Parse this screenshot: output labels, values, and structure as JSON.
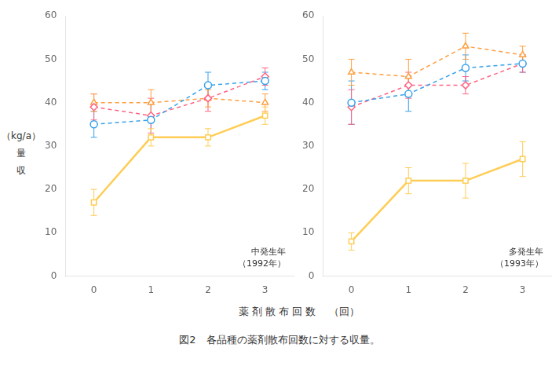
{
  "chart_data": [
    {
      "type": "line",
      "annotation": [
        "中発生年",
        "（1992年）"
      ],
      "x": [
        0,
        1,
        2,
        3
      ],
      "series": [
        {
          "marker": "circle",
          "line_style": "dashed",
          "values": [
            35,
            36,
            44,
            45
          ],
          "errors": [
            3,
            4,
            3,
            2
          ]
        },
        {
          "marker": "diamond",
          "line_style": "dashed",
          "values": [
            39,
            37,
            41,
            46
          ],
          "errors": [
            3,
            4,
            3,
            2
          ]
        },
        {
          "marker": "triangle",
          "line_style": "dashed",
          "values": [
            40,
            40,
            41,
            40
          ],
          "errors": [
            2,
            3,
            2,
            2
          ]
        },
        {
          "marker": "square",
          "line_style": "solid",
          "values": [
            17,
            32,
            32,
            37
          ],
          "errors": [
            3,
            2,
            2,
            2
          ]
        }
      ],
      "xlim": [
        -0.5,
        3.5
      ],
      "xticks": [
        0,
        1,
        2,
        3
      ],
      "ylim": [
        0,
        60
      ],
      "yticks": [
        0,
        10,
        20,
        30,
        40,
        50,
        60
      ],
      "grid": false
    },
    {
      "type": "line",
      "annotation": [
        "多発生年",
        "（1993年）"
      ],
      "x": [
        0,
        1,
        2,
        3
      ],
      "series": [
        {
          "marker": "circle",
          "line_style": "dashed",
          "values": [
            40,
            42,
            48,
            49
          ],
          "errors": [
            5,
            4,
            3,
            2
          ]
        },
        {
          "marker": "diamond",
          "line_style": "dashed",
          "values": [
            39,
            44,
            44,
            49
          ],
          "errors": [
            4,
            3,
            2,
            2
          ]
        },
        {
          "marker": "triangle",
          "line_style": "dashed",
          "values": [
            47,
            46,
            53,
            51
          ],
          "errors": [
            3,
            4,
            3,
            2
          ]
        },
        {
          "marker": "square",
          "line_style": "solid",
          "values": [
            8,
            22,
            22,
            27
          ],
          "errors": [
            2,
            3,
            4,
            4
          ]
        }
      ],
      "xlim": [
        -0.5,
        3.5
      ],
      "xticks": [
        0,
        1,
        2,
        3
      ],
      "ylim": [
        0,
        60
      ],
      "yticks": [
        0,
        10,
        20,
        30,
        40,
        50,
        60
      ],
      "grid": false
    }
  ],
  "xlabel": "薬 剤 散 布 回 数 　（回）",
  "ylabel": [
    "（kg/a）",
    "量",
    "収"
  ],
  "caption": "図2　各品種の薬剤散布回数に対する収量。"
}
